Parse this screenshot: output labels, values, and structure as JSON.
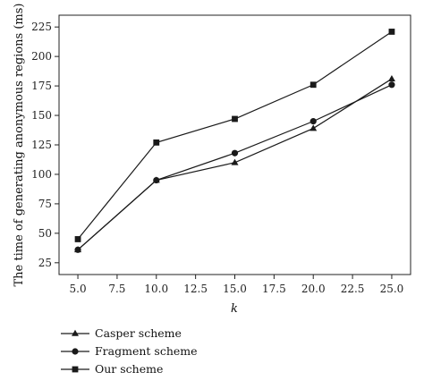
{
  "chart_data": {
    "type": "line",
    "xlabel": "k",
    "ylabel": "The time of generating anonymous regions (ms)",
    "xlim": [
      3.8,
      26.2
    ],
    "ylim": [
      15,
      235
    ],
    "x_ticks": [
      "5.0",
      "7.5",
      "10.0",
      "12.5",
      "15.0",
      "17.5",
      "20.0",
      "22.5",
      "25.0"
    ],
    "y_ticks": [
      "25",
      "50",
      "75",
      "100",
      "125",
      "150",
      "175",
      "200",
      "225"
    ],
    "x": [
      5,
      10,
      15,
      20,
      25
    ],
    "grid": false,
    "legend_position": "below",
    "series": [
      {
        "name": "Casper scheme",
        "marker": "triangle",
        "values": [
          36,
          95,
          110,
          139,
          181
        ]
      },
      {
        "name": "Fragment scheme",
        "marker": "circle",
        "values": [
          36,
          95,
          118,
          145,
          176
        ]
      },
      {
        "name": "Our scheme",
        "marker": "square",
        "values": [
          45,
          127,
          147,
          176,
          221
        ]
      }
    ],
    "line_color": "#1a1a1a"
  }
}
